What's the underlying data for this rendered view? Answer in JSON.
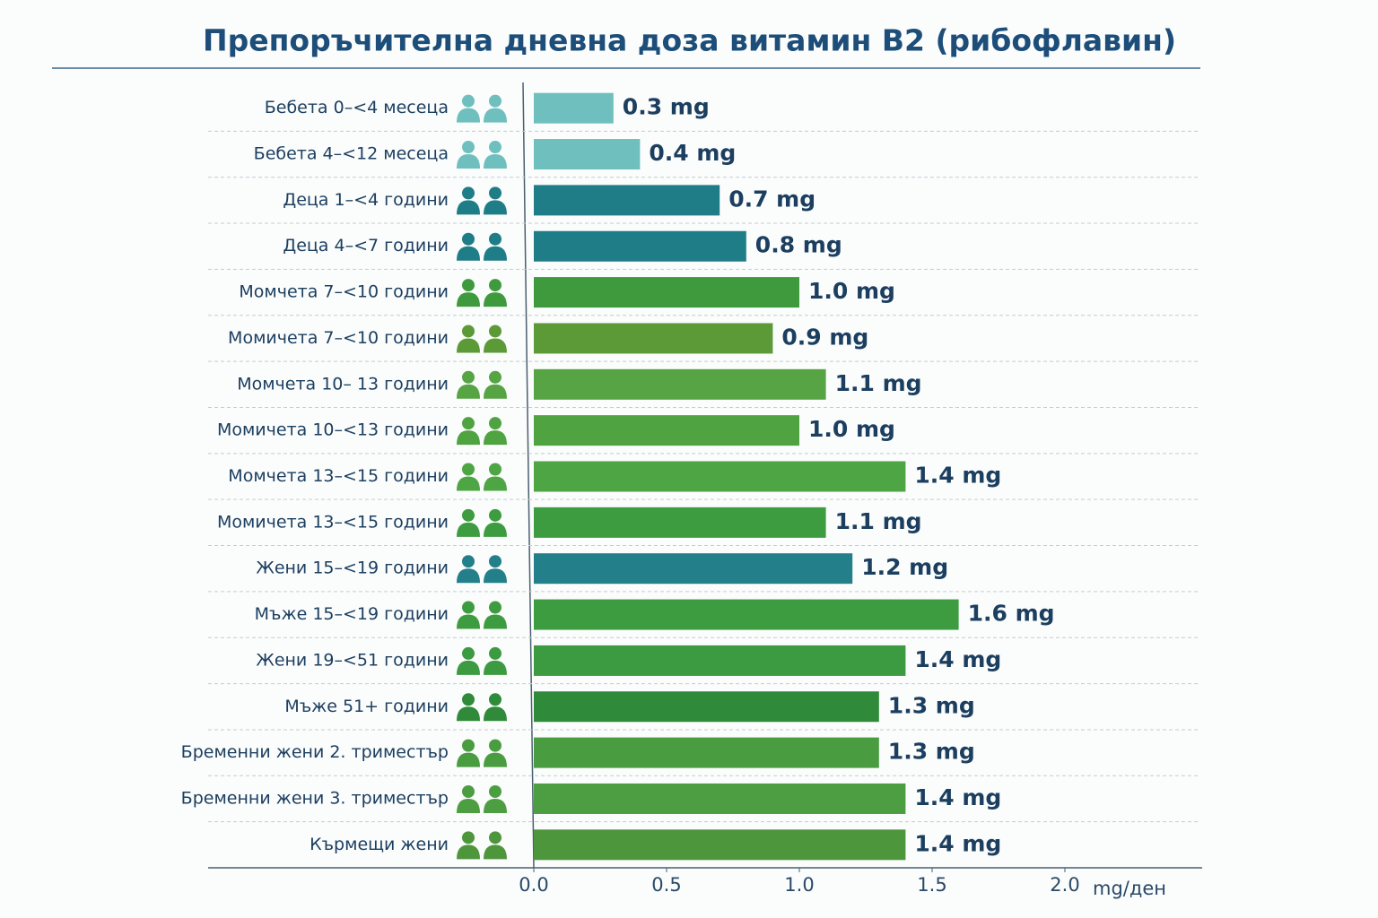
{
  "chart_data": {
    "type": "bar",
    "orientation": "horizontal",
    "title": "Препоръчителна дневна доза витамин B2 (рибофлавин)",
    "x_label": "mg/ден",
    "categories": [
      "Бебета 0–<4 месеца",
      "Бебета 4–<12 месеца",
      "Деца 1–<4 години",
      "Деца 4–<7 години",
      "Момчета 7–<10 години",
      "Момичета 7–<10 години",
      "Момчета 10– 13 години",
      "Момичета 10–<13 години",
      "Момчета 13–<15 години",
      "Момичета 13–<15 години",
      "Жени 15–<19 години",
      "Мъже 15–<19 години",
      "Жени 19–<51 години",
      "Мъже 51+ години",
      "Бременни жени 2. триместър",
      "Бременни жени 3. триместър",
      "Кърмещи жени"
    ],
    "values": [
      0.3,
      0.4,
      0.7,
      0.8,
      1.0,
      0.9,
      1.1,
      1.0,
      1.4,
      1.1,
      1.2,
      1.6,
      1.4,
      1.3,
      1.3,
      1.4,
      1.4
    ],
    "value_labels": [
      "0.3 mg",
      "0.4 mg",
      "0.7 mg",
      "0.8 mg",
      "1.0 mg",
      "0.9 mg",
      "1.1 mg",
      "1.0 mg",
      "1.4 mg",
      "1.1 mg",
      "1.2 mg",
      "1.6 mg",
      "1.4 mg",
      "1.3 mg",
      "1.3 mg",
      "1.4 mg",
      "1.4 mg"
    ],
    "colors": [
      "#6fbfbf",
      "#6fbfbf",
      "#1f7d88",
      "#1f7d88",
      "#3f9a3e",
      "#5c9a38",
      "#56a444",
      "#4fa341",
      "#4ea543",
      "#3d9c3f",
      "#237f8a",
      "#3e9c40",
      "#3c9a40",
      "#2f8a3a",
      "#4a9c40",
      "#4d9e42",
      "#4e963c"
    ],
    "xlim": [
      0,
      2.5
    ],
    "xticks": [
      {
        "value": 0,
        "label": "0.0"
      },
      0.5,
      {
        "value": 1,
        "label": "1.0"
      },
      1.5,
      {
        "value": 2,
        "label": "2.0"
      }
    ]
  }
}
